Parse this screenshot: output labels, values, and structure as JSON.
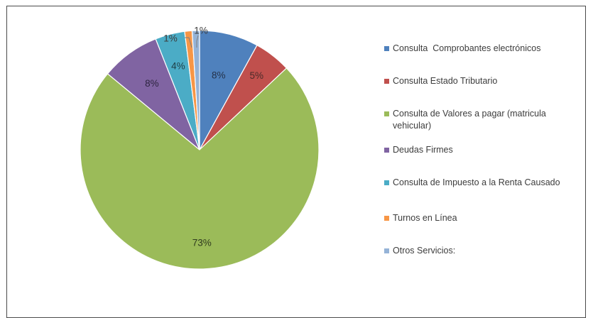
{
  "chart_data": {
    "type": "pie",
    "start_position": "top",
    "direction": "clockwise",
    "slices": [
      {
        "label": "Consulta  Comprobantes electrónicos",
        "value": 8,
        "data_label": "8%",
        "color": "#4f81bd"
      },
      {
        "label": "Consulta Estado Tributario",
        "value": 5,
        "data_label": "5%",
        "color": "#c0504d"
      },
      {
        "label": "Consulta de Valores a pagar (matricula vehicular)",
        "value": 73,
        "data_label": "73%",
        "color": "#9bbb59"
      },
      {
        "label": "Deudas Firmes",
        "value": 8,
        "data_label": "8%",
        "color": "#8064a2"
      },
      {
        "label": "Consulta de Impuesto a la Renta Causado",
        "value": 4,
        "data_label": "4%",
        "color": "#4bacc6"
      },
      {
        "label": "Turnos en Línea",
        "value": 1,
        "data_label": "1%",
        "color": "#f79646"
      },
      {
        "label": "Otros Servicios:",
        "value": 1,
        "data_label": "1%",
        "color": "#95b3d7"
      }
    ],
    "legend_position": "right",
    "title": ""
  }
}
